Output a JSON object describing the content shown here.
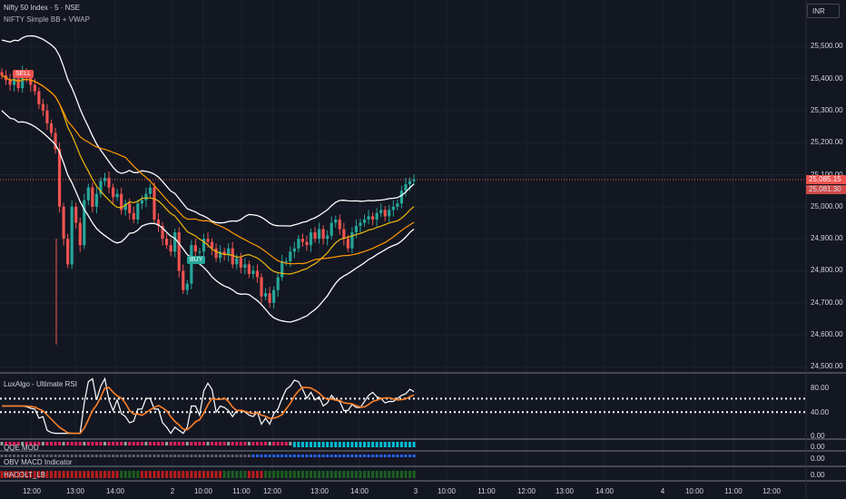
{
  "header": {
    "symbol_title": "Nifty 50 Index · 5 · NSE",
    "indicator_title": "NIFTY Simple BB + VWAP",
    "currency": "INR"
  },
  "price_axis": {
    "ticks": [
      "25,500.00",
      "25,400.00",
      "25,300.00",
      "25,200.00",
      "25,100.00",
      "25,000.00",
      "24,900.00",
      "24,800.00",
      "24,700.00",
      "24,600.00",
      "24,500.00"
    ],
    "last_price": "25,085.15",
    "prev_price": "25,081.30"
  },
  "time_axis": {
    "labels": [
      "12:00",
      "13:00",
      "14:00",
      "2",
      "10:00",
      "11:00",
      "12:00",
      "13:00",
      "14:00",
      "3",
      "10:00",
      "11:00",
      "12:00",
      "13:00",
      "14:00",
      "4",
      "10:00",
      "11:00",
      "12:00"
    ]
  },
  "signals": {
    "sell": "SELL",
    "buy": "BUY"
  },
  "panes": {
    "rsi": {
      "title": "LuxAlgo - Ultimate RSI",
      "ticks": [
        "80.00",
        "40.00",
        "0.00"
      ]
    },
    "qqe": {
      "title": "QQE MOD",
      "value": "0.00"
    },
    "obv": {
      "title": "OBV MACD Indicator",
      "value": "0.00"
    },
    "hacolt": {
      "title": "HACOLT_LB",
      "value": "0.00"
    }
  },
  "colors": {
    "background": "#131722",
    "bull": "#26a69a",
    "bear": "#ef5350",
    "bands": "#ffffff",
    "vwap": "#f0b90b",
    "basis": "#ff9800",
    "rsi_line": "#ffffff",
    "rsi_signal": "#ff7f27"
  },
  "chart_data": {
    "type": "candlestick",
    "price_range": [
      24490,
      25560
    ],
    "closes": [
      25410,
      25395,
      25380,
      25400,
      25370,
      25420,
      25405,
      25380,
      25360,
      25320,
      25300,
      25260,
      25230,
      25180,
      25000,
      24900,
      24820,
      25000,
      24950,
      24880,
      25020,
      25060,
      25000,
      25040,
      25080,
      25090,
      25060,
      25030,
      25040,
      24990,
      25010,
      24980,
      24960,
      25010,
      25020,
      25040,
      25060,
      24960,
      24940,
      24900,
      24880,
      24860,
      24920,
      24800,
      24740,
      24760,
      24880,
      24860,
      24860,
      24900,
      24890,
      24870,
      24840,
      24860,
      24850,
      24870,
      24820,
      24840,
      24810,
      24820,
      24790,
      24800,
      24780,
      24720,
      24730,
      24700,
      24740,
      24780,
      24830,
      24830,
      24860,
      24870,
      24900,
      24890,
      24880,
      24920,
      24900,
      24930,
      24900,
      24910,
      24950,
      24960,
      24930,
      24900,
      24870,
      24920,
      24940,
      24950,
      24960,
      24970,
      24960,
      24980,
      24990,
      24970,
      24990,
      25000,
      25010,
      25050,
      25070,
      25080,
      25085
    ]
  }
}
